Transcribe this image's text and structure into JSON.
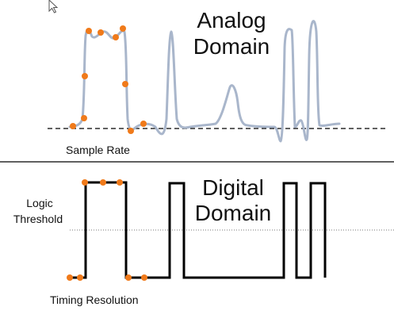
{
  "analog": {
    "title_line1": "Analog",
    "title_line2": "Domain",
    "sample_rate_label": "Sample Rate"
  },
  "digital": {
    "title_line1": "Digital",
    "title_line2": "Domain",
    "threshold_line1": "Logic",
    "threshold_line2": "Threshold",
    "timing_label": "Timing Resolution"
  },
  "colors": {
    "analog_wave": "#a9b6cb",
    "digital_wave": "#000000",
    "sample_dot": "#f07a1a",
    "divider": "#000000",
    "baseline": "#000000",
    "threshold": "#777777"
  },
  "icons": {
    "cursor": "mouse-pointer-icon"
  }
}
